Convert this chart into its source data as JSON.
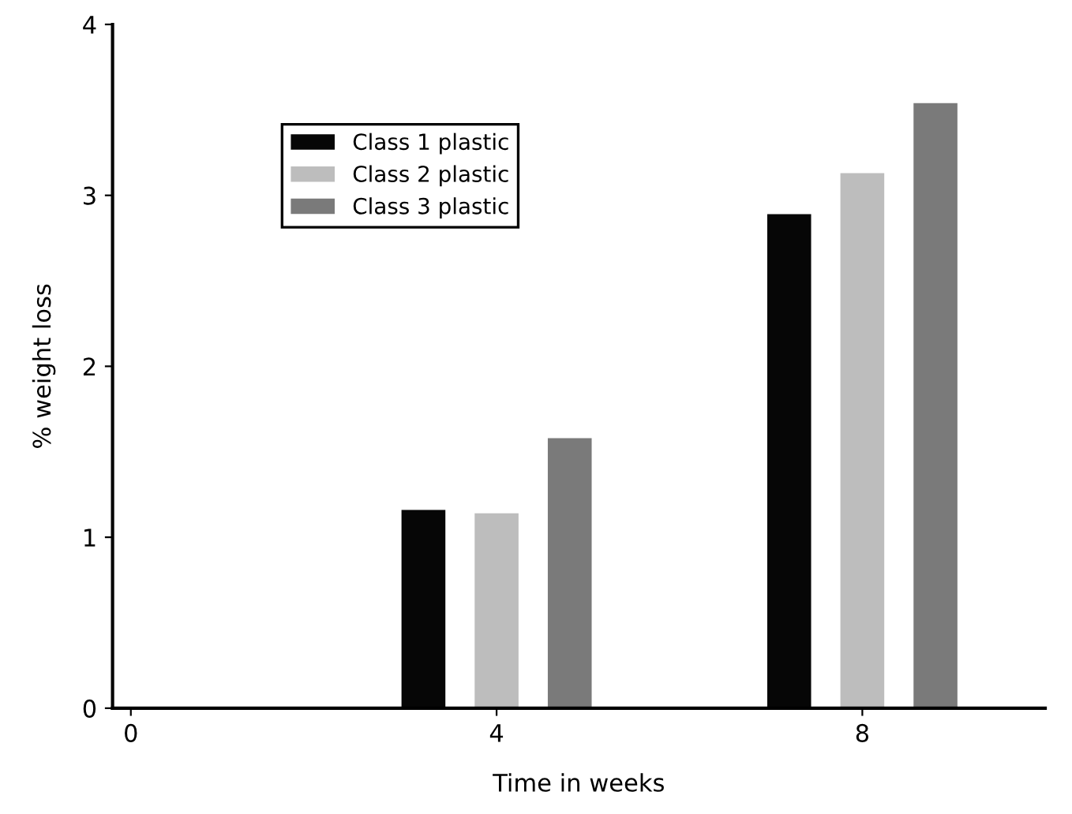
{
  "chart_data": {
    "type": "bar",
    "xlabel": "Time in weeks",
    "ylabel": "% weight loss",
    "categories": [
      "0",
      "4",
      "8"
    ],
    "series": [
      {
        "name": "Class 1 plastic",
        "color": "#060606",
        "values": [
          null,
          1.16,
          2.89
        ]
      },
      {
        "name": "Class 2 plastic",
        "color": "#bdbdbd",
        "values": [
          null,
          1.14,
          3.13
        ]
      },
      {
        "name": "Class 3 plastic",
        "color": "#7a7a7a",
        "values": [
          null,
          1.58,
          3.54
        ]
      }
    ],
    "ylim": [
      0,
      4
    ],
    "yticks": [
      0,
      1,
      2,
      3,
      4
    ],
    "grid": false,
    "legend": "top left"
  }
}
